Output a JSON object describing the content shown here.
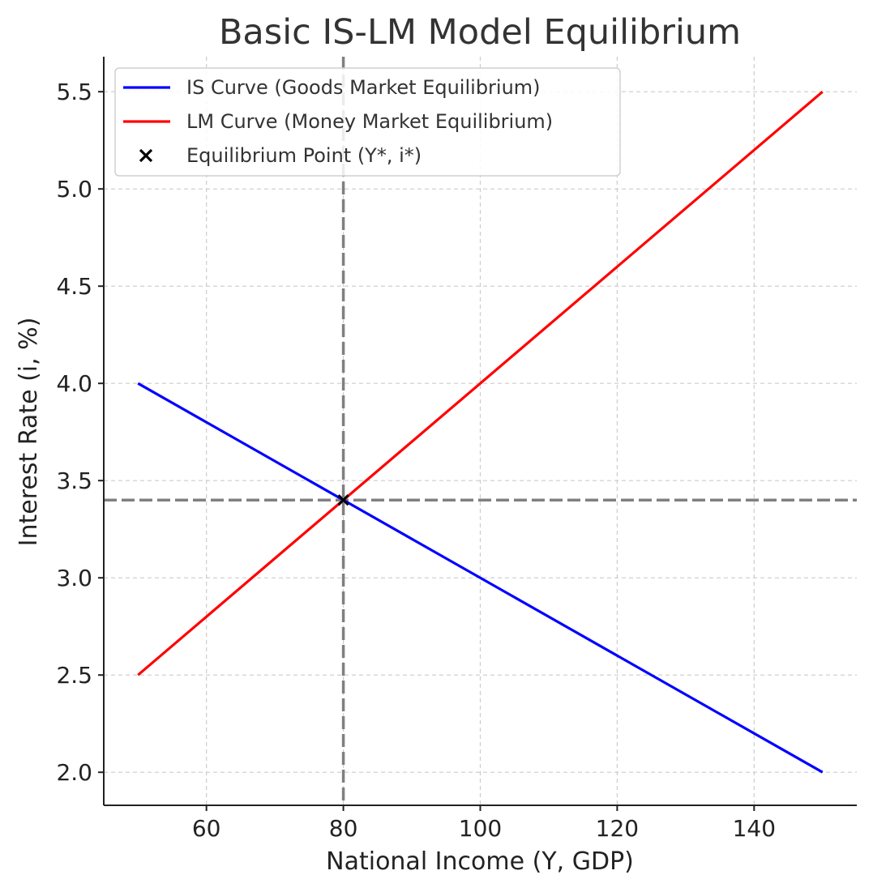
{
  "chart_data": {
    "type": "line",
    "title": "Basic IS-LM Model Equilibrium",
    "xlabel": "National Income (Y, GDP)",
    "ylabel": "Interest Rate (i, %)",
    "xlim": [
      45,
      155
    ],
    "ylim": [
      1.83,
      5.68
    ],
    "xticks": [
      60,
      80,
      100,
      120,
      140
    ],
    "xtick_labels": [
      "60",
      "80",
      "100",
      "120",
      "140"
    ],
    "yticks": [
      2.0,
      2.5,
      3.0,
      3.5,
      4.0,
      4.5,
      5.0,
      5.5
    ],
    "ytick_labels": [
      "2.0",
      "2.5",
      "3.0",
      "3.5",
      "4.0",
      "4.5",
      "5.0",
      "5.5"
    ],
    "grid": true,
    "series": [
      {
        "name": "IS Curve (Goods Market Equilibrium)",
        "color": "#0000ff",
        "x": [
          50,
          150
        ],
        "y": [
          4.0,
          2.0
        ]
      },
      {
        "name": "LM Curve (Money Market Equilibrium)",
        "color": "#ff0000",
        "x": [
          50,
          150
        ],
        "y": [
          2.5,
          5.5
        ]
      }
    ],
    "equilibrium": {
      "name": "Equilibrium Point (Y*, i*)",
      "color": "#000000",
      "marker": "x",
      "x": 80,
      "y": 3.4
    },
    "reference_lines": {
      "vertical_x": 80,
      "horizontal_y": 3.4,
      "color": "#808080",
      "style": "dashed"
    },
    "legend_position": "top-left"
  }
}
